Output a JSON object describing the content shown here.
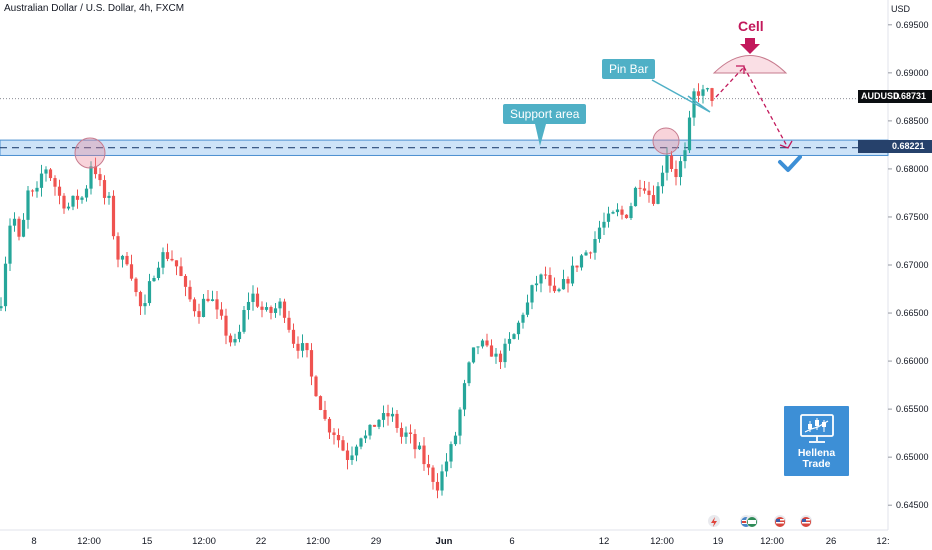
{
  "header": {
    "title": "Australian Dollar / U.S. Dollar, 4h, FXCM",
    "currency": "USD"
  },
  "price_tags": {
    "current": {
      "symbol": "AUDUSD",
      "price": "0.68731",
      "color": "#0b0e11"
    },
    "level": {
      "price": "0.68221",
      "color": "#26416b"
    }
  },
  "annotations": {
    "pin_bar": "Pin Bar",
    "support_area": "Support area",
    "cell": "Cell"
  },
  "logo": {
    "line1": "Hellena",
    "line2": "Trade",
    "icon": "monitor-chart-icon"
  },
  "event_icons": [
    "lightning-icon",
    "flag-icon",
    "flag-icon",
    "flag-icon",
    "flag-icon"
  ],
  "colors": {
    "bull": "#26a69a",
    "bear": "#ef5350",
    "support_band": "#cde3f8",
    "support_border": "#4b8fd0",
    "accent": "#c2185b",
    "forecast": "#c2185b",
    "check": "#3d8fd6"
  },
  "chart_data": {
    "type": "candlestick",
    "title": "Australian Dollar / U.S. Dollar, 4h, FXCM",
    "y_axis_label": "USD",
    "ylim": [
      0.6445,
      0.6955
    ],
    "y_ticks": [
      "0.69500",
      "0.69000",
      "0.68500",
      "0.68000",
      "0.67500",
      "0.67000",
      "0.66500",
      "0.66000",
      "0.65500",
      "0.65000",
      "0.64500"
    ],
    "x_ticks": [
      "8",
      "12:00",
      "15",
      "12:00",
      "22",
      "12:00",
      "29",
      "Jun",
      "6",
      "12",
      "12:00",
      "19",
      "12:00",
      "26",
      "12:"
    ],
    "horizontal_levels": [
      {
        "type": "support_zone",
        "from": 0.6814,
        "to": 0.683
      },
      {
        "type": "dashed_line",
        "value": 0.68221
      },
      {
        "type": "dotted_line",
        "value": 0.68731
      }
    ],
    "path": [
      [
        0,
        0.6655
      ],
      [
        6,
        0.671
      ],
      [
        12,
        0.676
      ],
      [
        20,
        0.672
      ],
      [
        28,
        0.6775
      ],
      [
        36,
        0.677
      ],
      [
        44,
        0.6805
      ],
      [
        52,
        0.679
      ],
      [
        60,
        0.677
      ],
      [
        68,
        0.676
      ],
      [
        76,
        0.677
      ],
      [
        84,
        0.677
      ],
      [
        92,
        0.681
      ],
      [
        98,
        0.679
      ],
      [
        104,
        0.677
      ],
      [
        110,
        0.6765
      ],
      [
        115,
        0.672
      ],
      [
        120,
        0.67
      ],
      [
        126,
        0.671
      ],
      [
        132,
        0.669
      ],
      [
        138,
        0.666
      ],
      [
        144,
        0.665
      ],
      [
        150,
        0.668
      ],
      [
        156,
        0.67
      ],
      [
        162,
        0.671
      ],
      [
        168,
        0.671
      ],
      [
        174,
        0.6705
      ],
      [
        180,
        0.669
      ],
      [
        186,
        0.667
      ],
      [
        192,
        0.666
      ],
      [
        198,
        0.665
      ],
      [
        205,
        0.6665
      ],
      [
        210,
        0.667
      ],
      [
        216,
        0.665
      ],
      [
        222,
        0.664
      ],
      [
        228,
        0.6625
      ],
      [
        234,
        0.6615
      ],
      [
        240,
        0.663
      ],
      [
        246,
        0.666
      ],
      [
        252,
        0.667
      ],
      [
        258,
        0.666
      ],
      [
        264,
        0.665
      ],
      [
        270,
        0.665
      ],
      [
        276,
        0.6655
      ],
      [
        282,
        0.666
      ],
      [
        288,
        0.664
      ],
      [
        294,
        0.662
      ],
      [
        300,
        0.6615
      ],
      [
        306,
        0.661
      ],
      [
        312,
        0.658
      ],
      [
        318,
        0.6565
      ],
      [
        324,
        0.654
      ],
      [
        330,
        0.653
      ],
      [
        336,
        0.6525
      ],
      [
        342,
        0.651
      ],
      [
        348,
        0.65
      ],
      [
        354,
        0.651
      ],
      [
        360,
        0.6525
      ],
      [
        366,
        0.652
      ],
      [
        372,
        0.653
      ],
      [
        378,
        0.654
      ],
      [
        384,
        0.654
      ],
      [
        390,
        0.6545
      ],
      [
        396,
        0.6535
      ],
      [
        402,
        0.652
      ],
      [
        408,
        0.6525
      ],
      [
        414,
        0.651
      ],
      [
        420,
        0.6505
      ],
      [
        426,
        0.649
      ],
      [
        432,
        0.648
      ],
      [
        438,
        0.647
      ],
      [
        444,
        0.649
      ],
      [
        450,
        0.6505
      ],
      [
        456,
        0.6525
      ],
      [
        462,
        0.656
      ],
      [
        468,
        0.659
      ],
      [
        474,
        0.661
      ],
      [
        480,
        0.662
      ],
      [
        486,
        0.661
      ],
      [
        492,
        0.661
      ],
      [
        498,
        0.66
      ],
      [
        504,
        0.661
      ],
      [
        510,
        0.662
      ],
      [
        516,
        0.663
      ],
      [
        522,
        0.665
      ],
      [
        528,
        0.666
      ],
      [
        534,
        0.668
      ],
      [
        540,
        0.6685
      ],
      [
        546,
        0.669
      ],
      [
        552,
        0.6665
      ],
      [
        558,
        0.667
      ],
      [
        564,
        0.668
      ],
      [
        570,
        0.669
      ],
      [
        576,
        0.67
      ],
      [
        582,
        0.671
      ],
      [
        588,
        0.6715
      ],
      [
        594,
        0.6725
      ],
      [
        600,
        0.674
      ],
      [
        606,
        0.6745
      ],
      [
        612,
        0.675
      ],
      [
        618,
        0.6755
      ],
      [
        624,
        0.675
      ],
      [
        630,
        0.676
      ],
      [
        636,
        0.678
      ],
      [
        642,
        0.679
      ],
      [
        648,
        0.6775
      ],
      [
        654,
        0.677
      ],
      [
        660,
        0.6785
      ],
      [
        664,
        0.681
      ],
      [
        668,
        0.682
      ],
      [
        672,
        0.68
      ],
      [
        676,
        0.6795
      ],
      [
        680,
        0.6805
      ],
      [
        684,
        0.681
      ],
      [
        688,
        0.683
      ],
      [
        692,
        0.6875
      ],
      [
        697,
        0.6882
      ],
      [
        702,
        0.6878
      ],
      [
        707,
        0.688
      ],
      [
        712,
        0.6875
      ],
      [
        716,
        0.6873
      ]
    ]
  }
}
